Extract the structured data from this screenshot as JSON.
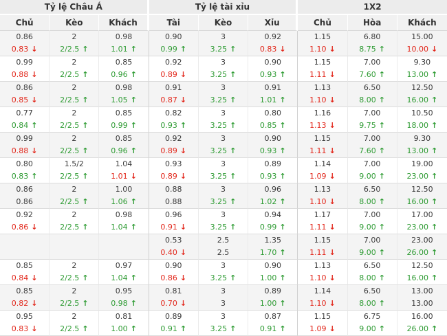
{
  "colors": {
    "up_green": "#2e9b33",
    "down_red": "#e2261a",
    "header_bg": "#ececec",
    "subheader_bg": "#f1f1f1",
    "alt_row_bg": "#f4f4f4"
  },
  "icons": {
    "up_arrow": "↑",
    "down_arrow": "↓"
  },
  "table": {
    "groups": [
      {
        "label": "Tỷ lệ Châu Á",
        "columns": [
          "Chủ",
          "Kèo",
          "Khách"
        ]
      },
      {
        "label": "Tỷ lệ tài xỉu",
        "columns": [
          "Tài",
          "Kèo",
          "Xỉu"
        ]
      },
      {
        "label": "1X2",
        "columns": [
          "Chủ",
          "Hòa",
          "Khách"
        ]
      }
    ],
    "rows": [
      [
        {
          "o": "0.86",
          "c": "0.83",
          "d": "down"
        },
        {
          "o": "2",
          "c": "2/2.5",
          "d": "up"
        },
        {
          "o": "0.98",
          "c": "1.01",
          "d": "up"
        },
        {
          "o": "0.90",
          "c": "0.99",
          "d": "up"
        },
        {
          "o": "3",
          "c": "3.25",
          "d": "up"
        },
        {
          "o": "0.92",
          "c": "0.83",
          "d": "down"
        },
        {
          "o": "1.15",
          "c": "1.10",
          "d": "down"
        },
        {
          "o": "6.80",
          "c": "8.75",
          "d": "up"
        },
        {
          "o": "15.00",
          "c": "10.00",
          "d": "down"
        }
      ],
      [
        {
          "o": "0.99",
          "c": "0.88",
          "d": "down"
        },
        {
          "o": "2",
          "c": "2/2.5",
          "d": "up"
        },
        {
          "o": "0.85",
          "c": "0.96",
          "d": "up"
        },
        {
          "o": "0.92",
          "c": "0.89",
          "d": "down"
        },
        {
          "o": "3",
          "c": "3.25",
          "d": "up"
        },
        {
          "o": "0.90",
          "c": "0.93",
          "d": "up"
        },
        {
          "o": "1.15",
          "c": "1.11",
          "d": "down"
        },
        {
          "o": "7.00",
          "c": "7.60",
          "d": "up"
        },
        {
          "o": "9.30",
          "c": "13.00",
          "d": "up"
        }
      ],
      [
        {
          "o": "0.86",
          "c": "0.85",
          "d": "down"
        },
        {
          "o": "2",
          "c": "2/2.5",
          "d": "up"
        },
        {
          "o": "0.98",
          "c": "1.05",
          "d": "up"
        },
        {
          "o": "0.91",
          "c": "0.87",
          "d": "down"
        },
        {
          "o": "3",
          "c": "3.25",
          "d": "up"
        },
        {
          "o": "0.91",
          "c": "1.01",
          "d": "up"
        },
        {
          "o": "1.13",
          "c": "1.10",
          "d": "down"
        },
        {
          "o": "6.50",
          "c": "8.00",
          "d": "up"
        },
        {
          "o": "12.50",
          "c": "16.00",
          "d": "up"
        }
      ],
      [
        {
          "o": "0.77",
          "c": "0.84",
          "d": "up"
        },
        {
          "o": "2",
          "c": "2/2.5",
          "d": "up"
        },
        {
          "o": "0.85",
          "c": "0.99",
          "d": "up"
        },
        {
          "o": "0.82",
          "c": "0.93",
          "d": "up"
        },
        {
          "o": "3",
          "c": "3.25",
          "d": "up"
        },
        {
          "o": "0.80",
          "c": "0.85",
          "d": "up"
        },
        {
          "o": "1.16",
          "c": "1.13",
          "d": "down"
        },
        {
          "o": "7.00",
          "c": "9.75",
          "d": "up"
        },
        {
          "o": "10.50",
          "c": "18.00",
          "d": "up"
        }
      ],
      [
        {
          "o": "0.99",
          "c": "0.88",
          "d": "down"
        },
        {
          "o": "2",
          "c": "2/2.5",
          "d": "up"
        },
        {
          "o": "0.85",
          "c": "0.96",
          "d": "up"
        },
        {
          "o": "0.92",
          "c": "0.89",
          "d": "down"
        },
        {
          "o": "3",
          "c": "3.25",
          "d": "up"
        },
        {
          "o": "0.90",
          "c": "0.93",
          "d": "up"
        },
        {
          "o": "1.15",
          "c": "1.11",
          "d": "down"
        },
        {
          "o": "7.00",
          "c": "7.60",
          "d": "up"
        },
        {
          "o": "9.30",
          "c": "13.00",
          "d": "up"
        }
      ],
      [
        {
          "o": "0.80",
          "c": "0.83",
          "d": "up"
        },
        {
          "o": "1.5/2",
          "c": "2/2.5",
          "d": "up"
        },
        {
          "o": "1.04",
          "c": "1.01",
          "d": "down"
        },
        {
          "o": "0.93",
          "c": "0.89",
          "d": "down"
        },
        {
          "o": "3",
          "c": "3.25",
          "d": "up"
        },
        {
          "o": "0.89",
          "c": "0.93",
          "d": "up"
        },
        {
          "o": "1.14",
          "c": "1.09",
          "d": "down"
        },
        {
          "o": "7.00",
          "c": "9.00",
          "d": "up"
        },
        {
          "o": "19.00",
          "c": "23.00",
          "d": "up"
        }
      ],
      [
        {
          "o": "0.86",
          "c": "0.86",
          "d": ""
        },
        {
          "o": "2",
          "c": "2/2.5",
          "d": "up"
        },
        {
          "o": "1.00",
          "c": "1.06",
          "d": "up"
        },
        {
          "o": "0.88",
          "c": "0.88",
          "d": ""
        },
        {
          "o": "3",
          "c": "3.25",
          "d": "up"
        },
        {
          "o": "0.96",
          "c": "1.02",
          "d": "up"
        },
        {
          "o": "1.13",
          "c": "1.10",
          "d": "down"
        },
        {
          "o": "6.50",
          "c": "8.00",
          "d": "up"
        },
        {
          "o": "12.50",
          "c": "16.00",
          "d": "up"
        }
      ],
      [
        {
          "o": "0.92",
          "c": "0.86",
          "d": "down"
        },
        {
          "o": "2",
          "c": "2/2.5",
          "d": "up"
        },
        {
          "o": "0.98",
          "c": "1.04",
          "d": "up"
        },
        {
          "o": "0.96",
          "c": "0.91",
          "d": "down"
        },
        {
          "o": "3",
          "c": "3.25",
          "d": "up"
        },
        {
          "o": "0.94",
          "c": "0.99",
          "d": "up"
        },
        {
          "o": "1.17",
          "c": "1.11",
          "d": "down"
        },
        {
          "o": "7.00",
          "c": "9.00",
          "d": "up"
        },
        {
          "o": "17.00",
          "c": "23.00",
          "d": "up"
        }
      ],
      [
        {
          "o": "",
          "c": "",
          "d": ""
        },
        {
          "o": "",
          "c": "",
          "d": ""
        },
        {
          "o": "",
          "c": "",
          "d": ""
        },
        {
          "o": "0.53",
          "c": "0.40",
          "d": "down"
        },
        {
          "o": "2.5",
          "c": "2.5",
          "d": ""
        },
        {
          "o": "1.35",
          "c": "1.70",
          "d": "up"
        },
        {
          "o": "1.15",
          "c": "1.11",
          "d": "down"
        },
        {
          "o": "7.00",
          "c": "9.00",
          "d": "up"
        },
        {
          "o": "23.00",
          "c": "26.00",
          "d": "up"
        }
      ],
      [
        {
          "o": "0.85",
          "c": "0.84",
          "d": "down"
        },
        {
          "o": "2",
          "c": "2/2.5",
          "d": "up"
        },
        {
          "o": "0.97",
          "c": "1.04",
          "d": "up"
        },
        {
          "o": "0.90",
          "c": "0.86",
          "d": "down"
        },
        {
          "o": "3",
          "c": "3.25",
          "d": "up"
        },
        {
          "o": "0.90",
          "c": "1.00",
          "d": "up"
        },
        {
          "o": "1.13",
          "c": "1.10",
          "d": "down"
        },
        {
          "o": "6.50",
          "c": "8.00",
          "d": "up"
        },
        {
          "o": "12.50",
          "c": "16.00",
          "d": "up"
        }
      ],
      [
        {
          "o": "0.85",
          "c": "0.82",
          "d": "down"
        },
        {
          "o": "2",
          "c": "2/2.5",
          "d": "up"
        },
        {
          "o": "0.95",
          "c": "0.98",
          "d": "up"
        },
        {
          "o": "0.81",
          "c": "0.70",
          "d": "down"
        },
        {
          "o": "3",
          "c": "3",
          "d": ""
        },
        {
          "o": "0.89",
          "c": "1.00",
          "d": "up"
        },
        {
          "o": "1.14",
          "c": "1.10",
          "d": "down"
        },
        {
          "o": "6.50",
          "c": "8.00",
          "d": "up"
        },
        {
          "o": "13.00",
          "c": "13.00",
          "d": ""
        }
      ],
      [
        {
          "o": "0.95",
          "c": "0.83",
          "d": "down"
        },
        {
          "o": "2",
          "c": "2/2.5",
          "d": "up"
        },
        {
          "o": "0.81",
          "c": "1.00",
          "d": "up"
        },
        {
          "o": "0.89",
          "c": "0.91",
          "d": "up"
        },
        {
          "o": "3",
          "c": "3.25",
          "d": "up"
        },
        {
          "o": "0.87",
          "c": "0.91",
          "d": "up"
        },
        {
          "o": "1.15",
          "c": "1.09",
          "d": "down"
        },
        {
          "o": "6.75",
          "c": "9.00",
          "d": "up"
        },
        {
          "o": "16.00",
          "c": "26.00",
          "d": "up"
        }
      ]
    ]
  }
}
